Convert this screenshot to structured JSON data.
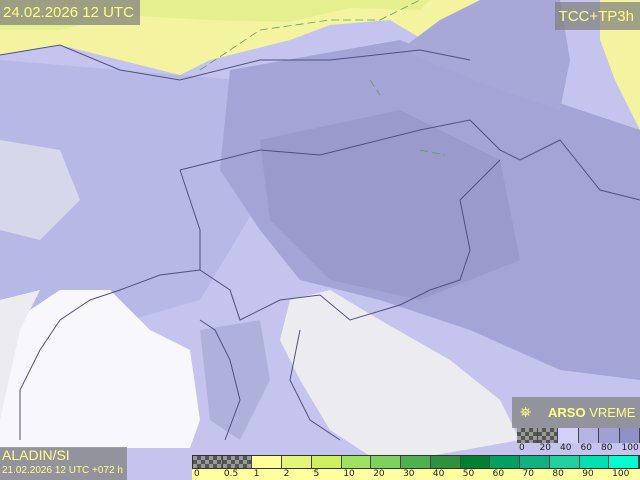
{
  "header": {
    "valid_time": "24.02.2026 12 UTC",
    "product": "TCC+TP3h"
  },
  "footer": {
    "model": "ALADIN/SI",
    "run": "21.02.2026 12 UTC +072 h"
  },
  "brand": {
    "icon": "satellite-dish-icon",
    "bold": "ARSO",
    "light": "VREME"
  },
  "cloud_legend": {
    "labels": [
      "0",
      "20",
      "40",
      "60",
      "80",
      "100"
    ],
    "colors": [
      "checker",
      "checker",
      "#d0d0f8",
      "#b4b4e4",
      "#a0a0d4",
      "#9090c8"
    ]
  },
  "precip_legend": {
    "labels": [
      "0",
      "0.5",
      "1",
      "2",
      "5",
      "10",
      "20",
      "30",
      "40",
      "50",
      "60",
      "70",
      "80",
      "90",
      "100"
    ],
    "colors": [
      "checker",
      "checker",
      "#ffff99",
      "#e4f57a",
      "#ccf060",
      "#a0e060",
      "#80d060",
      "#50b050",
      "#309040",
      "#008030",
      "#00a060",
      "#10b080",
      "#20d0a0",
      "#00e0b0",
      "#00ffd0"
    ]
  },
  "colors": {
    "label_text": "#ffff80",
    "cloud": "#a8a8d8",
    "precip_light": "#f8f8a0"
  }
}
